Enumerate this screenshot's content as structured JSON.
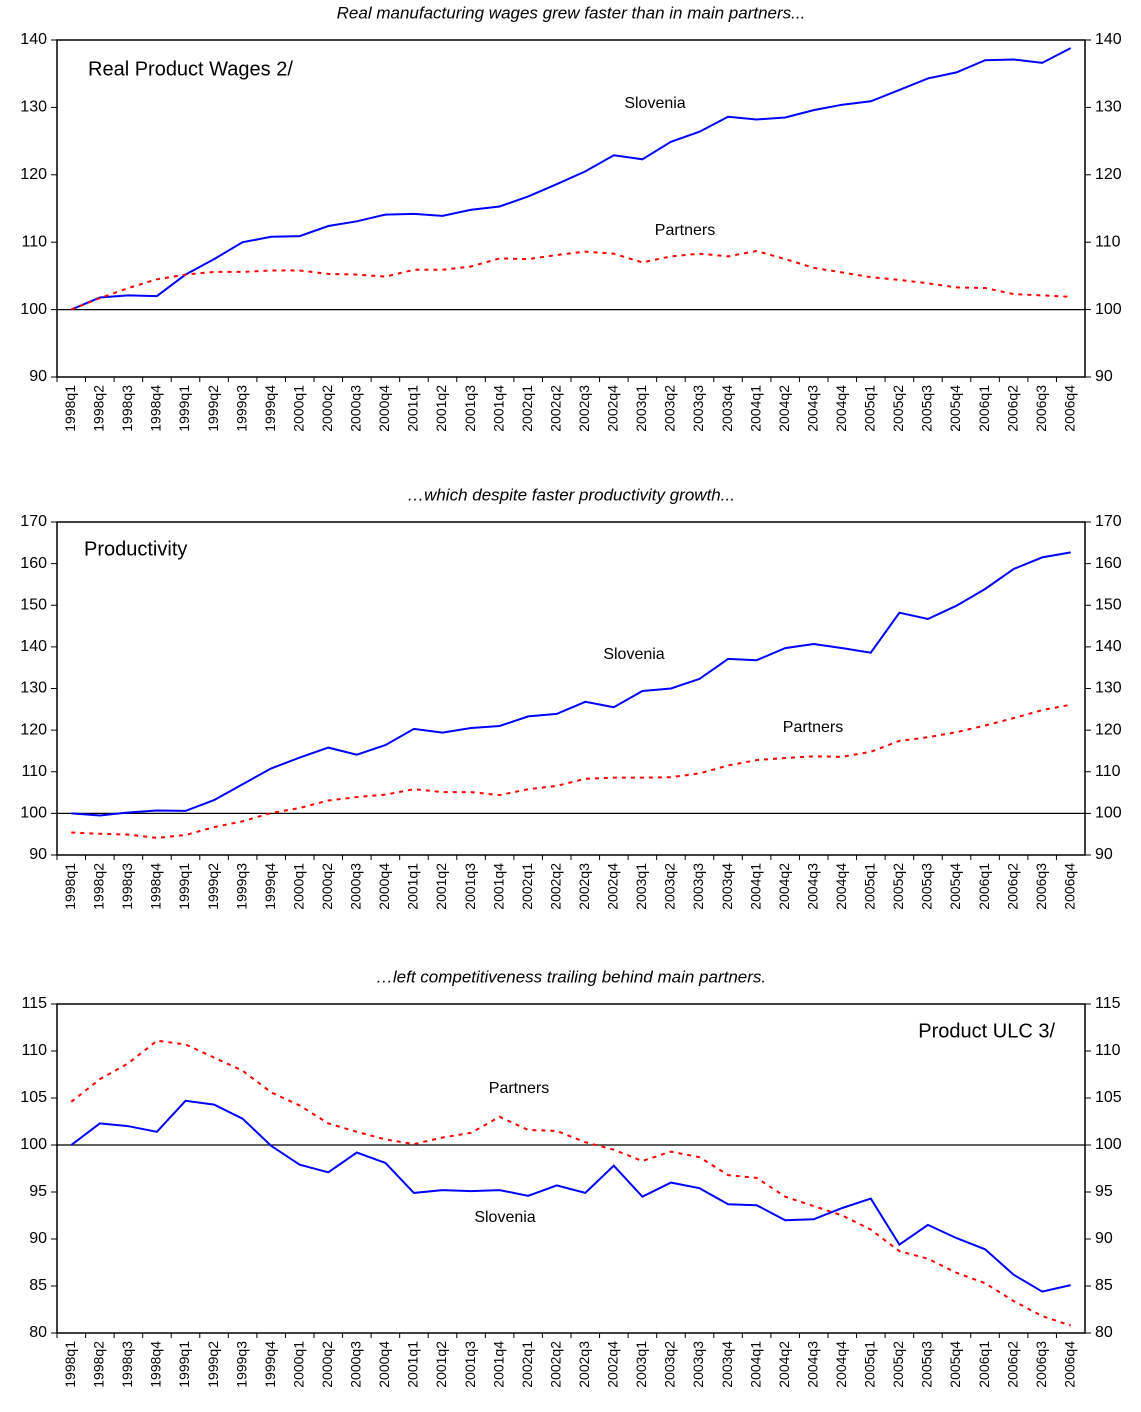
{
  "chart_data": [
    {
      "type": "line",
      "title": "Real manufacturing wages grew faster than in main partners...",
      "label": "Real Product Wages 2/",
      "categories": [
        "1998q1",
        "1998q2",
        "1998q3",
        "1998q4",
        "1999q1",
        "1999q2",
        "1999q3",
        "1999q4",
        "2000q1",
        "2000q2",
        "2000q3",
        "2000q4",
        "2001q1",
        "2001q2",
        "2001q3",
        "2001q4",
        "2002q1",
        "2002q2",
        "2002q3",
        "2002q4",
        "2003q1",
        "2003q2",
        "2003q3",
        "2003q4",
        "2004q1",
        "2004q2",
        "2004q3",
        "2004q4",
        "2005q1",
        "2005q2",
        "2005q3",
        "2005q4",
        "2006q1",
        "2006q2",
        "2006q3",
        "2006q4"
      ],
      "series": [
        {
          "name": "Slovenia",
          "color": "#0000ff",
          "style": "solid",
          "values": [
            100,
            101.8,
            102.1,
            102.0,
            105.2,
            107.5,
            110,
            110.8,
            110.9,
            112.4,
            113.1,
            114.1,
            114.2,
            113.9,
            114.8,
            115.3,
            116.8,
            118.6,
            120.5,
            122.9,
            122.3,
            124.9,
            126.4,
            128.6,
            128.2,
            128.5,
            129.6,
            130.4,
            130.9,
            132.6,
            134.3,
            135.2,
            137,
            137.1,
            136.6,
            138.8
          ]
        },
        {
          "name": "Partners",
          "color": "#ff0000",
          "style": "dashed",
          "values": [
            100,
            101.7,
            103.2,
            104.5,
            105.2,
            105.6,
            105.6,
            105.8,
            105.8,
            105.3,
            105.2,
            104.9,
            105.9,
            105.9,
            106.4,
            107.6,
            107.5,
            108.1,
            108.6,
            108.3,
            107,
            107.9,
            108.3,
            107.9,
            108.7,
            107.5,
            106.2,
            105.5,
            104.8,
            104.4,
            103.9,
            103.3,
            103.2,
            102.3,
            102.1,
            101.9
          ]
        }
      ],
      "ylim": [
        90,
        140
      ],
      "yticks": [
        90,
        100,
        110,
        120,
        130,
        140
      ],
      "hline": 100
    },
    {
      "type": "line",
      "title": "…which despite faster productivity growth...",
      "label": "Productivity",
      "categories": [
        "1998q1",
        "1998q2",
        "1998q3",
        "1998q4",
        "1999q1",
        "1999q2",
        "1999q3",
        "1999q4",
        "2000q1",
        "2000q2",
        "2000q3",
        "2000q4",
        "2001q1",
        "2001q2",
        "2001q3",
        "2001q4",
        "2002q1",
        "2002q2",
        "2002q3",
        "2002q4",
        "2003q1",
        "2003q2",
        "2003q3",
        "2003q4",
        "2004q1",
        "2004q2",
        "2004q3",
        "2004q4",
        "2005q1",
        "2005q2",
        "2005q3",
        "2005q4",
        "2006q1",
        "2006q2",
        "2006q3",
        "2006q4"
      ],
      "series": [
        {
          "name": "Slovenia",
          "color": "#0000ff",
          "style": "solid",
          "values": [
            100,
            99.5,
            100.2,
            100.7,
            100.6,
            103.2,
            107,
            110.8,
            113.4,
            115.8,
            114.1,
            116.4,
            120.3,
            119.4,
            120.5,
            121,
            123.3,
            123.9,
            126.8,
            125.5,
            129.4,
            130,
            132.3,
            137.1,
            136.8,
            139.7,
            140.7,
            139.7,
            138.6,
            148.2,
            146.7,
            149.9,
            153.9,
            158.7,
            161.5,
            162.7
          ]
        },
        {
          "name": "Partners",
          "color": "#ff0000",
          "style": "dashed",
          "values": [
            95.4,
            95.1,
            94.9,
            94.1,
            94.8,
            96.7,
            98.1,
            100.1,
            101.3,
            103.1,
            103.9,
            104.5,
            105.8,
            105.1,
            105.1,
            104.4,
            105.8,
            106.6,
            108.3,
            108.6,
            108.6,
            108.7,
            109.6,
            111.5,
            112.8,
            113.3,
            113.7,
            113.6,
            114.8,
            117.4,
            118.3,
            119.5,
            121.1,
            122.9,
            124.8,
            126.1
          ]
        }
      ],
      "ylim": [
        90,
        170
      ],
      "yticks": [
        90,
        100,
        110,
        120,
        130,
        140,
        150,
        160,
        170
      ],
      "hline": 100
    },
    {
      "type": "line",
      "title": "…left competitiveness trailing behind main partners.",
      "label": "Product ULC 3/",
      "categories": [
        "1998q1",
        "1998q2",
        "1998q3",
        "1998q4",
        "1999q1",
        "1999q2",
        "1999q3",
        "1999q4",
        "2000q1",
        "2000q2",
        "2000q3",
        "2000q4",
        "2001q1",
        "2001q2",
        "2001q3",
        "2001q4",
        "2002q1",
        "2002q2",
        "2002q3",
        "2002q4",
        "2003q1",
        "2003q2",
        "2003q3",
        "2003q4",
        "2004q1",
        "2004q2",
        "2004q3",
        "2004q4",
        "2005q1",
        "2005q2",
        "2005q3",
        "2005q4",
        "2006q1",
        "2006q2",
        "2006q3",
        "2006q4"
      ],
      "series": [
        {
          "name": "Slovenia",
          "color": "#0000ff",
          "style": "solid",
          "values": [
            100,
            102.3,
            102,
            101.4,
            104.7,
            104.3,
            102.8,
            99.9,
            97.9,
            97.1,
            99.2,
            98.1,
            94.9,
            95.2,
            95.1,
            95.2,
            94.6,
            95.7,
            94.9,
            97.8,
            94.5,
            96,
            95.4,
            93.7,
            93.6,
            92,
            92.1,
            93.3,
            94.3,
            89.4,
            91.5,
            90.1,
            88.9,
            86.2,
            84.4,
            85.1
          ]
        },
        {
          "name": "Partners",
          "color": "#ff0000",
          "style": "dashed",
          "values": [
            104.6,
            107,
            108.7,
            111.1,
            110.7,
            109.3,
            107.9,
            105.6,
            104.2,
            102.3,
            101.4,
            100.6,
            100.1,
            100.8,
            101.3,
            103,
            101.6,
            101.5,
            100.3,
            99.5,
            98.3,
            99.3,
            98.7,
            96.8,
            96.5,
            94.5,
            93.5,
            92.5,
            91,
            88.7,
            87.9,
            86.4,
            85.3,
            83.4,
            81.8,
            80.8
          ]
        }
      ],
      "ylim": [
        80,
        115
      ],
      "yticks": [
        80,
        85,
        90,
        95,
        100,
        105,
        110,
        115
      ],
      "hline": 100
    }
  ]
}
